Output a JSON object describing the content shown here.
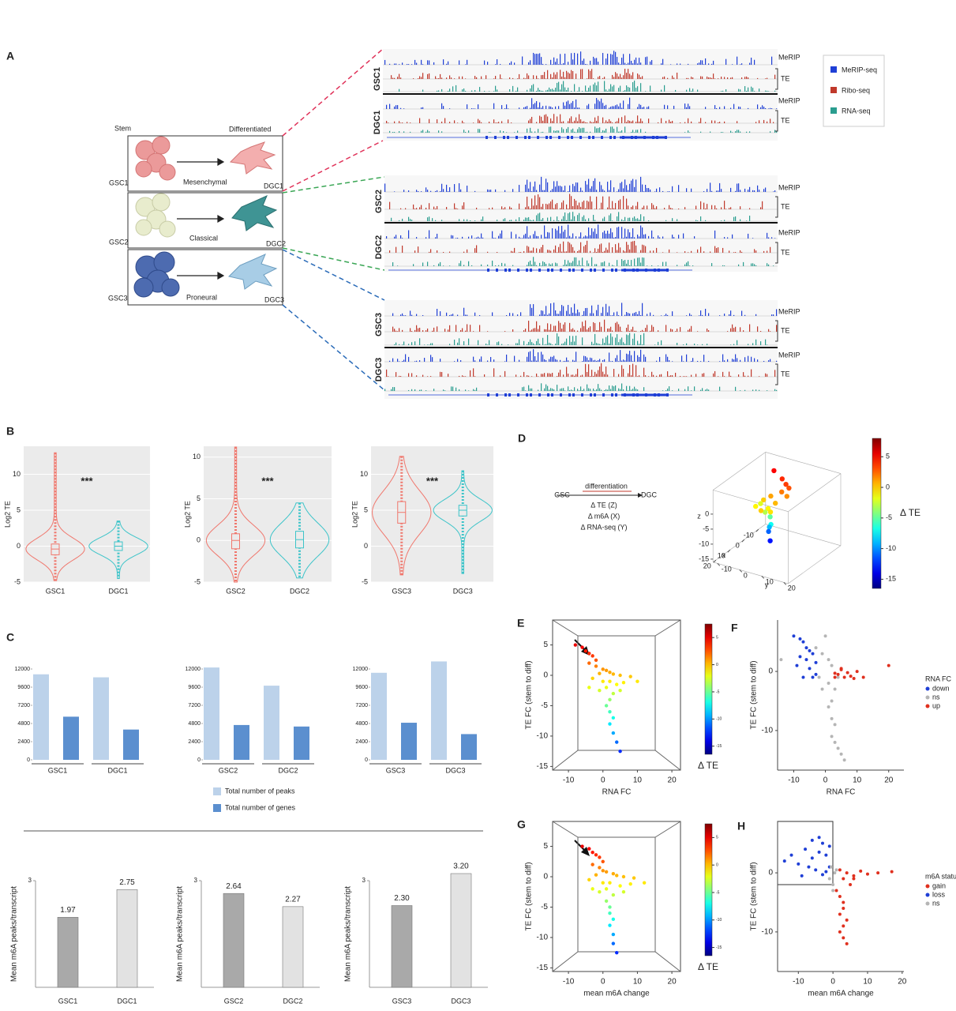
{
  "panel_labels": [
    "A",
    "B",
    "C",
    "D",
    "E",
    "F",
    "G",
    "H"
  ],
  "schematic": {
    "stem": "Stem",
    "differentiated": "Differentiated",
    "rows": [
      {
        "gsc": "GSC1",
        "subtype": "Mesenchymal",
        "dgc": "DGC1"
      },
      {
        "gsc": "GSC2",
        "subtype": "Classical",
        "dgc": "DGC2"
      },
      {
        "gsc": "GSC3",
        "subtype": "Proneural",
        "dgc": "DGC3"
      }
    ]
  },
  "tracks": {
    "blocks": [
      {
        "top": "GSC1",
        "bottom": "DGC1"
      },
      {
        "top": "GSC2",
        "bottom": "DGC2"
      },
      {
        "top": "GSC3",
        "bottom": "DGC3"
      }
    ],
    "merip": "MeRIP",
    "te": "TE",
    "legend": [
      {
        "name": "MeRIP-seq",
        "color": "#1f3fd6"
      },
      {
        "name": "Ribo-seq",
        "color": "#c0392b"
      },
      {
        "name": "RNA-seq",
        "color": "#2a9d8f"
      }
    ]
  },
  "chart_data": [
    {
      "type": "violin",
      "ylabel": "Log2 TE",
      "annotation": "***",
      "ylim": [
        -5,
        13.9
      ],
      "yticks": [
        -5,
        0,
        5,
        10
      ],
      "groups": [
        {
          "name": "GSC1",
          "color": "#f0776d",
          "median": -0.4,
          "q1": -1.2,
          "q3": 0.3,
          "min": -4.8,
          "max": 13
        },
        {
          "name": "DGC1",
          "color": "#3cc4c9",
          "median": 0,
          "q1": -0.6,
          "q3": 0.6,
          "min": -4.5,
          "max": 3.5
        }
      ]
    },
    {
      "type": "violin",
      "ylabel": "Log2 TE",
      "annotation": "***",
      "ylim": [
        -5,
        11.3
      ],
      "yticks": [
        -5,
        0,
        5,
        10
      ],
      "groups": [
        {
          "name": "GSC2",
          "color": "#f0776d",
          "median": 0,
          "q1": -1,
          "q3": 0.8,
          "min": -5,
          "max": 11.2
        },
        {
          "name": "DGC2",
          "color": "#3cc4c9",
          "median": 0.1,
          "q1": -0.9,
          "q3": 1.1,
          "min": -4.5,
          "max": 4.5
        }
      ]
    },
    {
      "type": "violin",
      "ylabel": "Log2 TE",
      "annotation": "***",
      "ylim": [
        -5,
        13.9
      ],
      "yticks": [
        -5,
        0,
        5,
        10
      ],
      "groups": [
        {
          "name": "GSC3",
          "color": "#f0776d",
          "median": 4.7,
          "q1": 3.2,
          "q3": 6.2,
          "min": -4,
          "max": 12.5
        },
        {
          "name": "DGC3",
          "color": "#3cc4c9",
          "median": 5,
          "q1": 4.2,
          "q3": 5.7,
          "min": -3.8,
          "max": 10.5
        }
      ]
    },
    {
      "type": "bar",
      "categories": [
        "GSC1",
        "DGC1"
      ],
      "ylim": [
        0,
        12300
      ],
      "yticks": [
        0,
        2400,
        4800,
        7200,
        9600,
        12000
      ],
      "series": [
        {
          "name": "Total number of peaks",
          "color": "#bcd2ea",
          "values": [
            11300,
            10900
          ]
        },
        {
          "name": "Total number of genes",
          "color": "#5b8fcf",
          "values": [
            5700,
            4000
          ]
        }
      ]
    },
    {
      "type": "bar",
      "categories": [
        "GSC2",
        "DGC2"
      ],
      "ylim": [
        0,
        12300
      ],
      "yticks": [
        0,
        2400,
        4800,
        7200,
        9600,
        12000
      ],
      "series": [
        {
          "color": "#bcd2ea",
          "values": [
            12200,
            9800
          ]
        },
        {
          "color": "#5b8fcf",
          "values": [
            4600,
            4400
          ]
        }
      ]
    },
    {
      "type": "bar",
      "categories": [
        "GSC3",
        "DGC3"
      ],
      "ylim": [
        0,
        13200
      ],
      "yticks": [
        0,
        2400,
        4800,
        7200,
        9600,
        12000
      ],
      "series": [
        {
          "color": "#bcd2ea",
          "values": [
            11500,
            13000
          ]
        },
        {
          "color": "#5b8fcf",
          "values": [
            4900,
            3400
          ]
        }
      ]
    },
    {
      "type": "bar",
      "ylabel": "Mean m6A peaks/transcript",
      "categories": [
        "GSC1",
        "DGC1"
      ],
      "values": [
        1.97,
        2.75
      ],
      "value_labels": [
        "1.97",
        "2.75"
      ],
      "colors": [
        "#a9a9a9",
        "#e2e2e2"
      ],
      "ylim": [
        0,
        3
      ],
      "yticks": [
        3
      ]
    },
    {
      "type": "bar",
      "ylabel": "Mean m6A peaks/transcript",
      "categories": [
        "GSC2",
        "DGC2"
      ],
      "values": [
        2.64,
        2.27
      ],
      "value_labels": [
        "2.64",
        "2.27"
      ],
      "colors": [
        "#a9a9a9",
        "#e2e2e2"
      ],
      "ylim": [
        0,
        3
      ],
      "yticks": [
        3
      ]
    },
    {
      "type": "bar",
      "ylabel": "Mean m6A peaks/transcript",
      "categories": [
        "GSC3",
        "DGC3"
      ],
      "values": [
        2.3,
        3.2
      ],
      "value_labels": [
        "2.30",
        "3.20"
      ],
      "colors": [
        "#a9a9a9",
        "#e2e2e2"
      ],
      "ylim": [
        0,
        3
      ],
      "yticks": [
        3
      ]
    },
    {
      "type": "scatter3d",
      "annotations": [
        "GSC",
        "differentiation",
        "DGC",
        "Δ TE (Z)",
        "Δ m6A (X)",
        "Δ RNA-seq (Y)"
      ],
      "xlabel": "x",
      "ylabel": "y",
      "zlabel": "z",
      "xlim": [
        -15,
        22
      ],
      "ylim": [
        -12,
        22
      ],
      "zlim": [
        -16,
        8
      ],
      "xticks": [
        -10,
        0,
        10,
        20
      ],
      "yticks": [
        -10,
        0,
        10,
        20
      ],
      "zticks": [
        -15,
        -10,
        -5,
        0
      ],
      "x": [
        -10,
        -8,
        -5,
        -3,
        0,
        2,
        5,
        3,
        1,
        -2,
        4,
        6,
        2,
        3,
        1,
        0,
        2,
        -6,
        8,
        10
      ],
      "y": [
        -5,
        0,
        5,
        3,
        0,
        -2,
        2,
        4,
        -4,
        6,
        0,
        -3,
        1,
        2,
        0,
        -1,
        1,
        3,
        5,
        2
      ],
      "z": [
        5,
        4,
        3,
        2,
        1,
        0,
        -1,
        0.5,
        -2,
        1.5,
        -3,
        -1,
        -5,
        -7,
        -9,
        -11,
        -13,
        3.5,
        -0.5,
        0
      ],
      "colorbar": {
        "label": "Δ TE",
        "lim": [
          -16.5,
          8
        ],
        "ticks": [
          -15,
          -10,
          -5,
          0,
          5
        ]
      }
    },
    {
      "type": "scatter",
      "colormap": "jet",
      "xlabel": "RNA FC",
      "ylabel": "TE FC (stem to diff)",
      "xlim": [
        -14.6,
        22.5
      ],
      "ylim": [
        -15.6,
        9.1
      ],
      "xticks": [
        -10,
        0,
        10,
        20
      ],
      "yticks": [
        -15,
        -10,
        -5,
        0,
        5
      ],
      "x": [
        -8,
        -6,
        -5,
        -4,
        -3,
        -2,
        -4,
        -2,
        0,
        1,
        2,
        -1,
        3,
        5,
        8,
        -3,
        0,
        2,
        4,
        6,
        10,
        -4,
        -1,
        1,
        3,
        5,
        2,
        1,
        2,
        3,
        2,
        3,
        4,
        5
      ],
      "y": [
        5,
        4.6,
        4,
        3.6,
        3.2,
        2.5,
        2,
        1.5,
        1,
        0.8,
        0.5,
        0.3,
        0.2,
        0,
        -0.2,
        -0.5,
        -1,
        -1,
        -1.5,
        -1.2,
        -1,
        -2,
        -2.5,
        -2,
        -3,
        -2.5,
        -4,
        -5,
        -6,
        -7,
        -8,
        -9.5,
        -11,
        -12.5
      ],
      "colorbar": {
        "label": "Δ TE",
        "lim": [
          -16.5,
          7.5
        ],
        "ticks": [
          -15,
          -10,
          -5,
          0,
          5
        ]
      }
    },
    {
      "type": "scatter",
      "xlabel": "RNA FC",
      "ylabel": "TE FC (stem to diff)",
      "xlim": [
        -15.1,
        24.8
      ],
      "ylim": [
        -16.7,
        8.7
      ],
      "xticks": [
        -10,
        0,
        10,
        20
      ],
      "yticks": [
        -10,
        0
      ],
      "legend_title": "RNA FC",
      "series": [
        {
          "name": "down",
          "color": "#1f3fd6",
          "x": [
            -10,
            -8,
            -7,
            -6,
            -5,
            -4,
            -8,
            -6,
            -3,
            -9,
            -5,
            -4,
            -7,
            -3
          ],
          "y": [
            6,
            5.5,
            5,
            4,
            3.5,
            3,
            2.5,
            2,
            1.5,
            1,
            0.5,
            -1,
            -1,
            -0.5
          ]
        },
        {
          "name": "ns",
          "color": "#b5b5b5",
          "x": [
            -3,
            -1,
            0,
            1,
            2,
            -2,
            1,
            3,
            4,
            2,
            1,
            2,
            3,
            2,
            3,
            4,
            5,
            6,
            -14,
            -1
          ],
          "y": [
            4,
            3,
            6,
            2,
            1,
            -1,
            -2,
            -3,
            -1,
            -5,
            -6,
            -8,
            -9,
            -11,
            -12,
            -13,
            -14,
            -15,
            2,
            -3
          ]
        },
        {
          "name": "up",
          "color": "#e0301e",
          "x": [
            3,
            4,
            5,
            6,
            8,
            10,
            12,
            5,
            7,
            20,
            3,
            9
          ],
          "y": [
            -1,
            -0.5,
            0.5,
            -1,
            -0.8,
            0,
            -1,
            0.3,
            -0.2,
            1,
            -0.3,
            -1.2
          ]
        }
      ]
    },
    {
      "type": "scatter",
      "colormap": "jet",
      "xlabel": "mean m6A change",
      "ylabel": "TE FC (stem to diff)",
      "xlim": [
        -14.6,
        22.5
      ],
      "ylim": [
        -15.6,
        9.1
      ],
      "xticks": [
        -10,
        0,
        10,
        20
      ],
      "yticks": [
        -15,
        -10,
        -5,
        0,
        5
      ],
      "x": [
        -6,
        -4,
        -3,
        -2,
        -1,
        0,
        -3,
        -1,
        0,
        1,
        3,
        -2,
        4,
        6,
        9,
        -4,
        0,
        2,
        5,
        8,
        12,
        -3,
        -1,
        1,
        3,
        6,
        1,
        2,
        2,
        3,
        2,
        3,
        3,
        4
      ],
      "y": [
        5,
        4.6,
        4,
        3.6,
        3.2,
        2.5,
        2,
        1.5,
        1,
        0.8,
        0.5,
        0.3,
        0.2,
        0,
        -0.2,
        -0.5,
        -1,
        -1,
        -1.5,
        -1.2,
        -1,
        -2,
        -2.5,
        -2,
        -3,
        -2.5,
        -4,
        -5,
        -6,
        -7,
        -8,
        -9.5,
        -11,
        -12.5
      ],
      "colorbar": {
        "label": "Δ TE",
        "lim": [
          -16.5,
          7.5
        ],
        "ticks": [
          -15,
          -10,
          -5,
          0,
          5
        ]
      }
    },
    {
      "type": "scatter",
      "xlabel": "mean m6A change",
      "ylabel": "TE FC (stem to diff)",
      "xlim": [
        -16,
        20.5
      ],
      "ylim": [
        -16.7,
        8.7
      ],
      "xticks": [
        -10,
        0,
        10,
        20
      ],
      "yticks": [
        -10,
        0
      ],
      "legend_title": "m6A status",
      "series": [
        {
          "name": "gain",
          "color": "#e0301e",
          "x": [
            2,
            4,
            6,
            8,
            10,
            13,
            17,
            3,
            5,
            1,
            2,
            3,
            3,
            2,
            4,
            3,
            2,
            3,
            4,
            6
          ],
          "y": [
            0.5,
            0,
            -0.5,
            0.3,
            -0.2,
            0,
            0.2,
            -1,
            -2,
            -3,
            -4,
            -5,
            -6,
            -7,
            -8,
            -9,
            -10,
            -11,
            -12,
            -1
          ]
        },
        {
          "name": "loss",
          "color": "#1f3fd6",
          "x": [
            -14,
            -12,
            -10,
            -8,
            -6,
            -4,
            -3,
            -2,
            -1,
            -5,
            -7,
            -9,
            -3,
            -2,
            -1,
            -6,
            -4
          ],
          "y": [
            2,
            3,
            1.5,
            4,
            2.5,
            6,
            5,
            3,
            1,
            0.5,
            1,
            -0.5,
            -0.3,
            0.2,
            4.5,
            5.5,
            3.5
          ]
        },
        {
          "name": "ns",
          "color": "#b5b5b5",
          "x": [
            -1,
            0,
            0.5,
            -0.5,
            0,
            1
          ],
          "y": [
            -1,
            -2,
            0,
            1,
            -3,
            0.5
          ]
        }
      ]
    }
  ]
}
